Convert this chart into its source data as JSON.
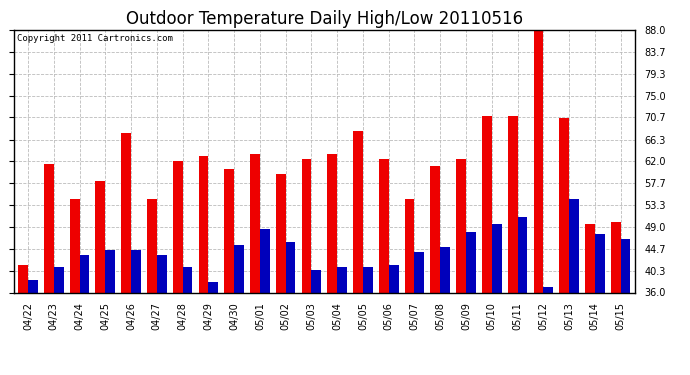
{
  "title": "Outdoor Temperature Daily High/Low 20110516",
  "copyright": "Copyright 2011 Cartronics.com",
  "dates": [
    "04/22",
    "04/23",
    "04/24",
    "04/25",
    "04/26",
    "04/27",
    "04/28",
    "04/29",
    "04/30",
    "05/01",
    "05/02",
    "05/03",
    "05/04",
    "05/05",
    "05/06",
    "05/07",
    "05/08",
    "05/09",
    "05/10",
    "05/11",
    "05/12",
    "05/13",
    "05/14",
    "05/15"
  ],
  "highs": [
    41.5,
    61.5,
    54.5,
    58.0,
    67.5,
    54.5,
    62.0,
    63.0,
    60.5,
    63.5,
    59.5,
    62.5,
    63.5,
    68.0,
    62.5,
    54.5,
    61.0,
    62.5,
    71.0,
    71.0,
    88.0,
    70.5,
    49.5,
    50.0
  ],
  "lows": [
    38.5,
    41.0,
    43.5,
    44.5,
    44.5,
    43.5,
    41.0,
    38.0,
    45.5,
    48.5,
    46.0,
    40.5,
    41.0,
    41.0,
    41.5,
    44.0,
    45.0,
    48.0,
    49.5,
    51.0,
    37.0,
    54.5,
    47.5,
    46.5
  ],
  "high_color": "#ee0000",
  "low_color": "#0000bb",
  "ylim_min": 36.0,
  "ylim_max": 88.0,
  "yticks": [
    36.0,
    40.3,
    44.7,
    49.0,
    53.3,
    57.7,
    62.0,
    66.3,
    70.7,
    75.0,
    79.3,
    83.7,
    88.0
  ],
  "background_color": "#ffffff",
  "grid_color": "#bbbbbb",
  "bar_width": 0.38,
  "title_fontsize": 12,
  "tick_fontsize": 7,
  "copyright_fontsize": 6.5
}
